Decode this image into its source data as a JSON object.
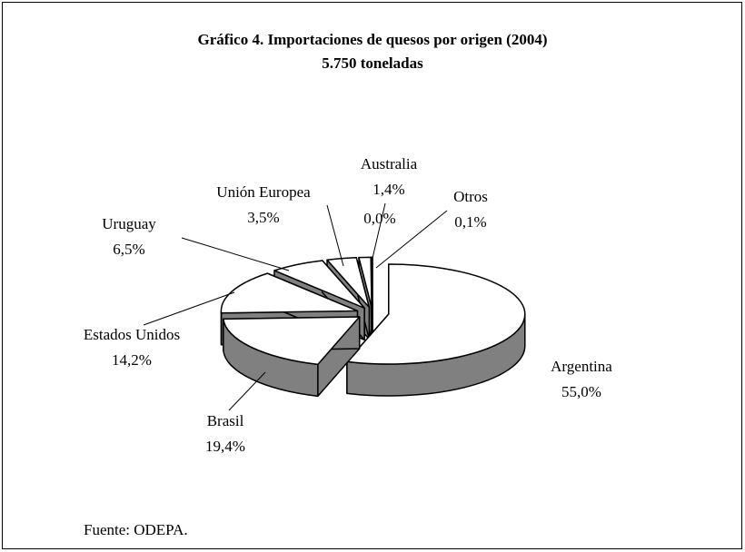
{
  "chart_data": {
    "type": "pie3d",
    "title": "Gráfico 4.  Importaciones de quesos por origen  (2004)",
    "subtitle": "5.750 toneladas",
    "categories": [
      "Argentina",
      "Brasil",
      "Estados Unidos",
      "Uruguay",
      "Unión Europea",
      "Australia",
      null,
      "Otros"
    ],
    "values": [
      55.0,
      19.4,
      14.2,
      6.5,
      3.5,
      1.4,
      0.0,
      0.1
    ],
    "value_labels": [
      "55,0%",
      "19,4%",
      "14,2%",
      "6,5%",
      "3,5%",
      "1,4%",
      "0,0%",
      "0,1%"
    ],
    "color": "#ffffff",
    "side_color": "#808080",
    "source": "Fuente:  ODEPA."
  }
}
